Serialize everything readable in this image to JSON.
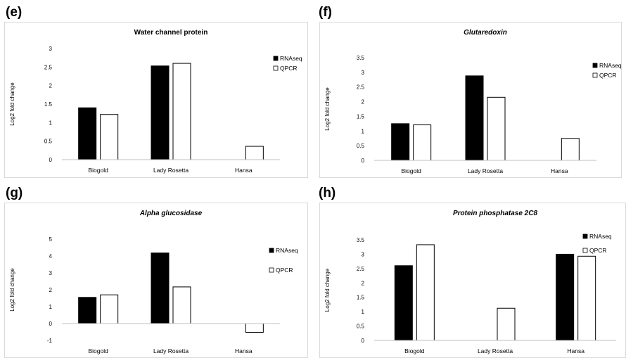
{
  "panel_labels": [
    "(e)",
    "(f)",
    "(g)",
    "(h)"
  ],
  "chart_data": [
    {
      "type": "bar",
      "title": "Water channel protein",
      "title_italic": false,
      "ylabel": "Log2 fold change",
      "categories": [
        "Biogold",
        "Lady Rosetta",
        "Hansa"
      ],
      "series": [
        {
          "name": "RNAseq",
          "values": [
            1.4,
            2.53,
            null
          ],
          "fill": "#000000"
        },
        {
          "name": "QPCR",
          "values": [
            1.22,
            2.6,
            0.36
          ],
          "fill": "#ffffff"
        }
      ],
      "ylim": [
        0,
        3
      ],
      "yticks": [
        0,
        0.5,
        1,
        1.5,
        2,
        2.5,
        3
      ],
      "ytick_labels": [
        "0",
        "0.5",
        "1",
        "1.5",
        "2",
        "2.5",
        "3"
      ],
      "legend": "top-right"
    },
    {
      "type": "bar",
      "title": "Glutaredoxin",
      "title_italic": true,
      "ylabel": "Log2 fold change",
      "categories": [
        "Biogold",
        "Lady Rosetta",
        "Hansa"
      ],
      "series": [
        {
          "name": "RNAseq",
          "values": [
            1.25,
            2.88,
            null
          ],
          "fill": "#000000"
        },
        {
          "name": "QPCR",
          "values": [
            1.21,
            2.15,
            0.75
          ],
          "fill": "#ffffff"
        }
      ],
      "ylim": [
        0,
        3.5
      ],
      "yticks": [
        0,
        0.5,
        1,
        1.5,
        2,
        2.5,
        3,
        3.5
      ],
      "ytick_labels": [
        "0",
        "0.5",
        "1",
        "1.5",
        "2",
        "2.5",
        "3",
        "3.5"
      ],
      "legend": "top-right"
    },
    {
      "type": "bar",
      "title": "Alpha glucosidase",
      "title_italic": true,
      "ylabel": "Log2 fold change",
      "categories": [
        "Biogold",
        "Lady Rosetta",
        "Hansa"
      ],
      "series": [
        {
          "name": "RNAseq",
          "values": [
            1.55,
            4.18,
            null
          ],
          "fill": "#000000"
        },
        {
          "name": "QPCR",
          "values": [
            1.7,
            2.17,
            -0.52
          ],
          "fill": "#ffffff"
        }
      ],
      "ylim": [
        -1,
        5
      ],
      "yticks": [
        -1,
        0,
        1,
        2,
        3,
        4,
        5
      ],
      "ytick_labels": [
        "-1",
        "0",
        "1",
        "2",
        "3",
        "4",
        "5"
      ],
      "legend": "right"
    },
    {
      "type": "bar",
      "title": "Protein phosphatase 2C8",
      "title_italic": true,
      "ylabel": "Log2 fold change",
      "categories": [
        "Biogold",
        "Lady Rosetta",
        "Hansa"
      ],
      "series": [
        {
          "name": "RNAseq",
          "values": [
            2.6,
            null,
            3.0
          ],
          "fill": "#000000"
        },
        {
          "name": "QPCR",
          "values": [
            3.33,
            1.12,
            2.93
          ],
          "fill": "#ffffff"
        }
      ],
      "ylim": [
        0,
        3.5
      ],
      "yticks": [
        0,
        0.5,
        1,
        1.5,
        2,
        2.5,
        3,
        3.5
      ],
      "ytick_labels": [
        "0",
        "0.5",
        "1",
        "1.5",
        "2",
        "2.5",
        "3",
        "3.5"
      ],
      "legend": "top-right"
    }
  ]
}
